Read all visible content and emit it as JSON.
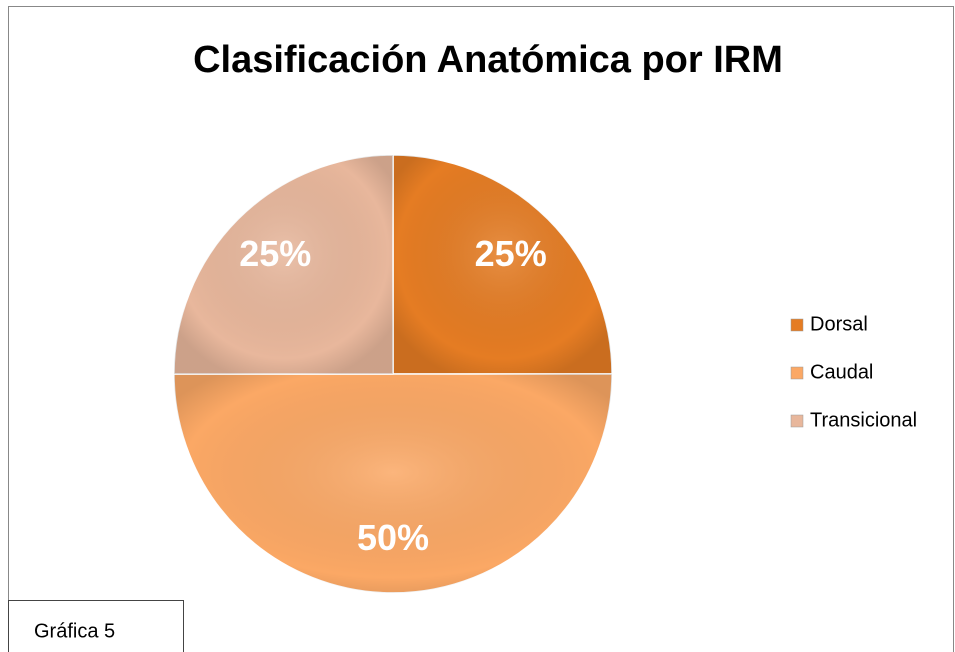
{
  "chart_data": {
    "type": "pie",
    "title": "Clasificación Anatómica por IRM",
    "categories": [
      "Dorsal",
      "Caudal",
      "Transicional"
    ],
    "values": [
      25,
      50,
      25
    ],
    "value_labels": [
      "25%",
      "50%",
      "25%"
    ],
    "colors": [
      "#e57c23",
      "#fba865",
      "#e8b79c"
    ],
    "legend": "right"
  },
  "caption": "Gráfica 5"
}
